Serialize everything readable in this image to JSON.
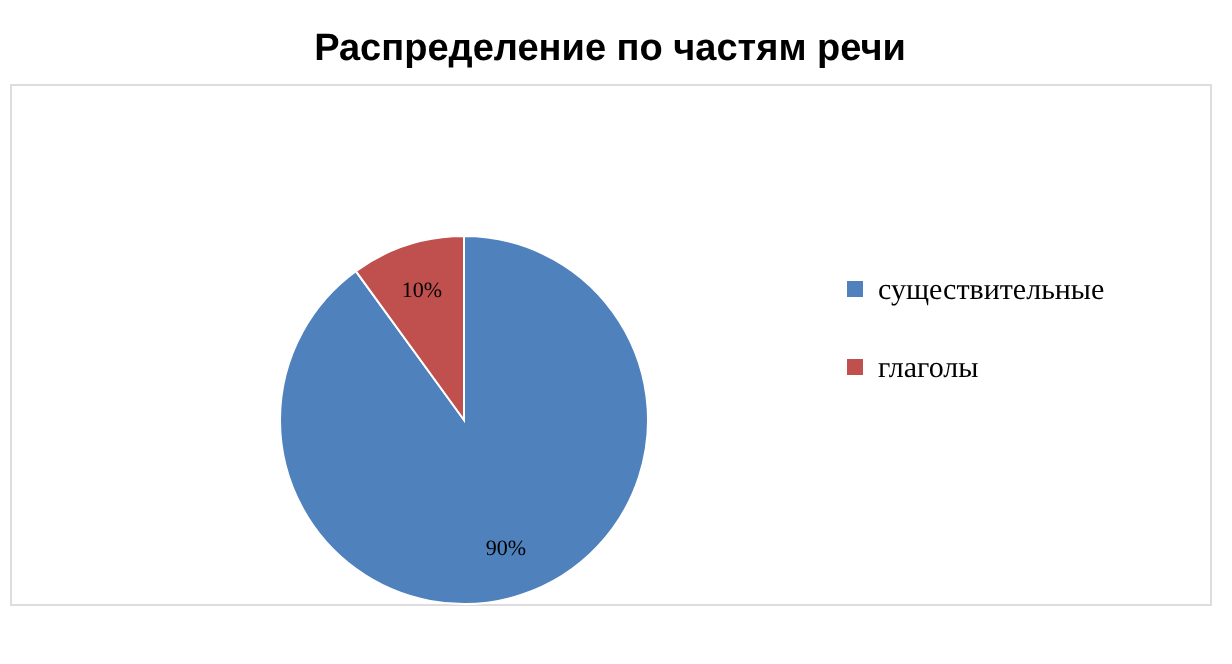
{
  "chart_data": {
    "type": "pie",
    "title": "Распределение по частям речи",
    "categories": [
      "существительные",
      "глаголы"
    ],
    "values": [
      90,
      10
    ],
    "colors": [
      "#4f81bd",
      "#c0504d"
    ],
    "value_labels": [
      "90%",
      "10%"
    ],
    "legend": "right"
  }
}
